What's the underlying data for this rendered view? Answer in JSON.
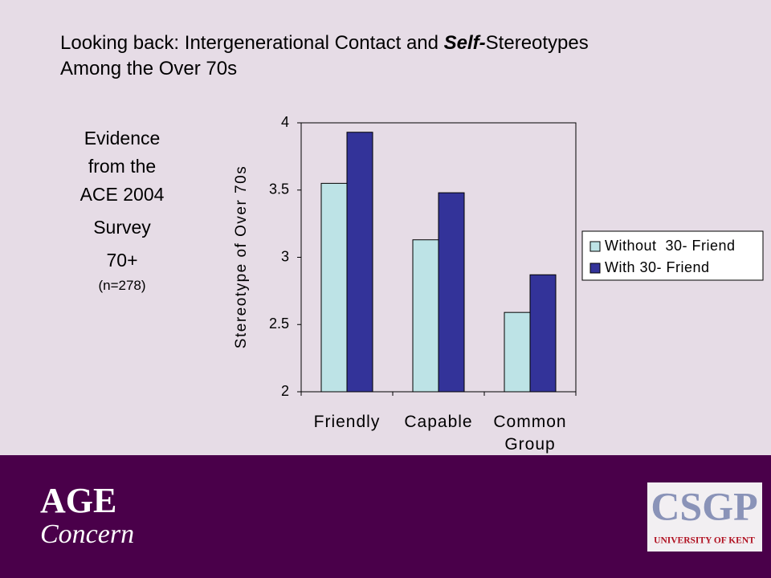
{
  "title_parts": [
    "Looking back: Intergenerational Contact and ",
    "Self-",
    "Stereotypes",
    "Among the Over 70s"
  ],
  "side_text": {
    "evidence": "Evidence from the ACE 2004",
    "survey": "Survey",
    "age": "70+",
    "sample": "(n=278)"
  },
  "logos": {
    "age": "AGE",
    "concern": "Concern",
    "csgp": "CSGP",
    "university": "UNIVERSITY OF KENT"
  },
  "chart_data": {
    "type": "bar",
    "y_label": "Stereotype of Over 70s",
    "categories": [
      "Friendly",
      "Capable",
      "Common Group"
    ],
    "series": [
      {
        "name": "Without  30- Friend",
        "color": "#bde3e6",
        "values": [
          3.55,
          3.13,
          2.59
        ]
      },
      {
        "name": "With 30- Friend",
        "color": "#333399",
        "values": [
          3.93,
          3.48,
          2.87
        ]
      }
    ],
    "ylim": [
      2,
      4
    ],
    "yticks": [
      2,
      2.5,
      3,
      3.5,
      4
    ],
    "grid": false,
    "legend": "right"
  }
}
